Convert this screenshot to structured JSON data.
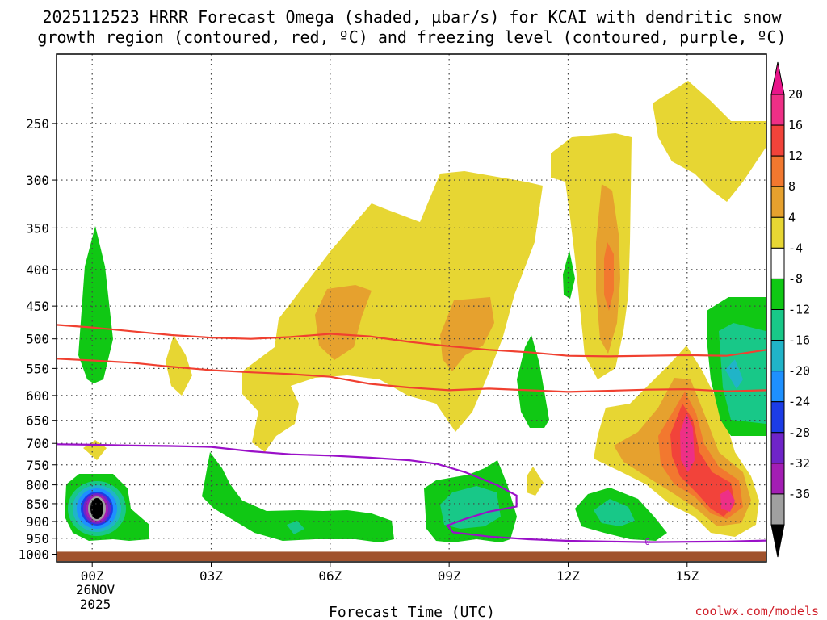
{
  "chart_data": {
    "type": "heatmap",
    "title_line1": "2025112523 HRRR Forecast Omega (shaded, µbar/s) for KCAI with dendritic snow",
    "title_line2": "growth region (contoured, red, ºC) and freezing level (contoured, purple, ºC)",
    "xlabel": "Forecast Time (UTC)",
    "xlim": [
      -0.9,
      17.0
    ],
    "x_ticks": [
      {
        "hour": 0,
        "label": "00Z"
      },
      {
        "hour": 3,
        "label": "03Z"
      },
      {
        "hour": 6,
        "label": "06Z"
      },
      {
        "hour": 9,
        "label": "09Z"
      },
      {
        "hour": 12,
        "label": "12Z"
      },
      {
        "hour": 15,
        "label": "15Z"
      }
    ],
    "x_date_line1": "26NOV",
    "x_date_line2": "2025",
    "y_ticks": [
      250,
      300,
      350,
      400,
      450,
      500,
      550,
      600,
      650,
      700,
      750,
      800,
      850,
      900,
      950,
      1000
    ],
    "ylim_hpa": [
      200,
      1025
    ],
    "ground_level_hpa": 992,
    "colorbar": {
      "tick_labels": [
        "20",
        "16",
        "12",
        "8",
        "4",
        "-4",
        "-8",
        "-12",
        "-16",
        "-20",
        "-24",
        "-28",
        "-32",
        "-36"
      ],
      "bands": [
        {
          "color": "#ee2f86"
        },
        {
          "color": "#f2433a"
        },
        {
          "color": "#f2782f"
        },
        {
          "color": "#e6a12e"
        },
        {
          "color": "#e7d633"
        },
        {
          "color": "#ffffff"
        },
        {
          "color": "#10c814"
        },
        {
          "color": "#18c888"
        },
        {
          "color": "#20b4c8"
        },
        {
          "color": "#1e90ff"
        },
        {
          "color": "#1c3ce6"
        },
        {
          "color": "#6f24c8"
        },
        {
          "color": "#a31eb4"
        },
        {
          "color": "#a0a0a0"
        }
      ],
      "top_cap_color": "#e8158a",
      "bottom_cap_color": "#000000"
    },
    "dgz_contours": {
      "color": "#f04030",
      "series": [
        {
          "name": "upper",
          "points": [
            [
              -0.9,
              478
            ],
            [
              0,
              482
            ],
            [
              1,
              488
            ],
            [
              2,
              494
            ],
            [
              3,
              498
            ],
            [
              4,
              500
            ],
            [
              5,
              497
            ],
            [
              6,
              492
            ],
            [
              7,
              496
            ],
            [
              8,
              505
            ],
            [
              9,
              512
            ],
            [
              10,
              518
            ],
            [
              11,
              522
            ],
            [
              12,
              528
            ],
            [
              13,
              529
            ],
            [
              14,
              528
            ],
            [
              15,
              527
            ],
            [
              16,
              528
            ],
            [
              17,
              518
            ]
          ]
        },
        {
          "name": "lower",
          "points": [
            [
              -0.9,
              533
            ],
            [
              0,
              536
            ],
            [
              1,
              540
            ],
            [
              2,
              547
            ],
            [
              3,
              553
            ],
            [
              4,
              557
            ],
            [
              5,
              560
            ],
            [
              6,
              565
            ],
            [
              7,
              578
            ],
            [
              8,
              585
            ],
            [
              9,
              590
            ],
            [
              10,
              587
            ],
            [
              11,
              590
            ],
            [
              12,
              593
            ],
            [
              13,
              591
            ],
            [
              14,
              589
            ],
            [
              15,
              588
            ],
            [
              16,
              592
            ],
            [
              17,
              590
            ]
          ]
        }
      ]
    },
    "freezing_level_contour": {
      "color": "#9a10c8",
      "label": "0",
      "points": [
        [
          -0.9,
          702
        ],
        [
          0,
          703
        ],
        [
          1,
          705
        ],
        [
          2,
          706
        ],
        [
          3,
          708
        ],
        [
          4,
          718
        ],
        [
          5,
          725
        ],
        [
          6,
          728
        ],
        [
          7,
          733
        ],
        [
          8,
          739
        ],
        [
          8.7,
          748
        ],
        [
          9.4,
          768
        ],
        [
          10.2,
          800
        ],
        [
          10.7,
          828
        ],
        [
          10.7,
          858
        ],
        [
          10,
          872
        ],
        [
          9.4,
          893
        ],
        [
          8.95,
          912
        ],
        [
          9.1,
          932
        ],
        [
          10,
          945
        ],
        [
          11,
          953
        ],
        [
          12,
          958
        ],
        [
          13,
          960
        ],
        [
          14,
          962
        ],
        [
          15,
          961
        ],
        [
          16,
          960
        ],
        [
          17,
          957
        ]
      ]
    },
    "omega_regions_note": "Shaded omega (µbar/s): yellow/orange ascent 250-750 hPa from 03Z-17Z, peak >16 near 15Z 700 hPa; green/teal descent near surface and 450-650 hPa; strongest descent (<-36) at 00Z 880 hPa."
  },
  "credit": "coolwx.com/models"
}
